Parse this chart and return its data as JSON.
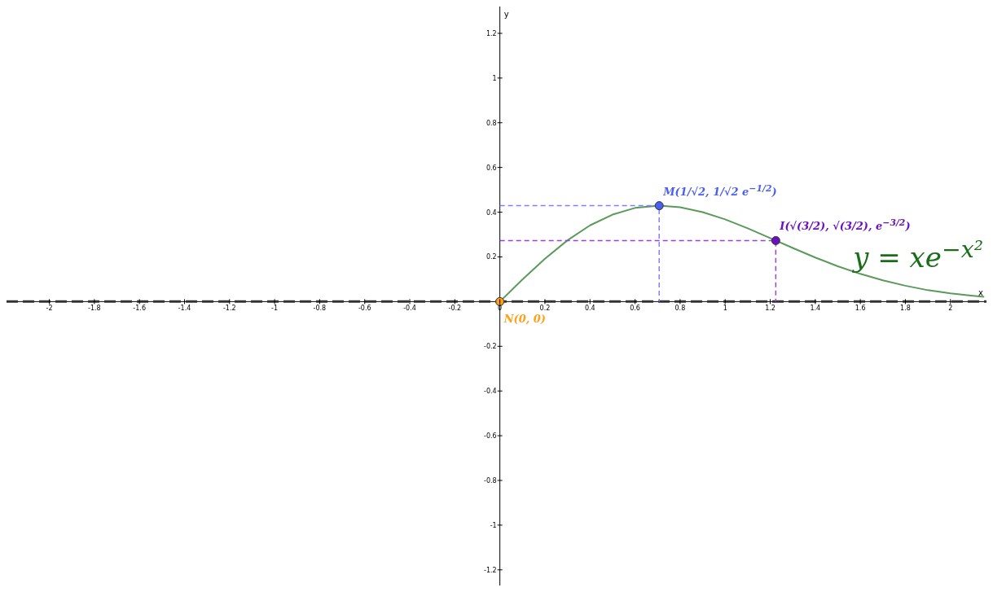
{
  "chart_data": {
    "type": "line",
    "xlabel": "x",
    "ylabel": "y",
    "xlim": [
      -2.19,
      2.16
    ],
    "ylim": [
      -1.27,
      1.32
    ],
    "xticks": [
      -2,
      -1.8,
      -1.6,
      -1.4,
      -1.2,
      -1,
      -0.8,
      -0.6,
      -0.4,
      -0.2,
      0,
      0.2,
      0.4,
      0.6,
      0.8,
      1,
      1.2,
      1.4,
      1.6,
      1.8,
      2
    ],
    "yticks": [
      -1.2,
      -1,
      -0.8,
      -0.6,
      -0.4,
      -0.2,
      0.2,
      0.4,
      0.6,
      0.8,
      1,
      1.2
    ],
    "ref_lines": [
      {
        "axis": "y",
        "value": 0,
        "line_style": "dashed",
        "color": "#333333"
      }
    ],
    "series": [
      {
        "color": "#5a9a5a",
        "marker": "none",
        "line_style": "solid",
        "x": [
          0,
          0.1,
          0.2,
          0.3,
          0.4,
          0.5,
          0.6,
          0.7071,
          0.8,
          0.9,
          1,
          1.1,
          1.2247,
          1.3,
          1.4,
          1.5,
          1.6,
          1.7,
          1.8,
          1.9,
          2,
          2.1,
          2.15
        ],
        "values": [
          0,
          0.099,
          0.192,
          0.274,
          0.341,
          0.389,
          0.419,
          0.429,
          0.422,
          0.4,
          0.368,
          0.328,
          0.273,
          0.24,
          0.197,
          0.158,
          0.124,
          0.095,
          0.071,
          0.051,
          0.037,
          0.026,
          0.021
        ]
      },
      {
        "type": "line",
        "color": "#8080ff",
        "marker": "none",
        "line_style": "dashed",
        "x": [
          0,
          0.7071,
          0.7071
        ],
        "values": [
          0.429,
          0.429,
          0
        ]
      },
      {
        "type": "line",
        "color": "#9b40d9",
        "marker": "none",
        "line_style": "dashed",
        "x": [
          0,
          1.2247,
          1.2247
        ],
        "values": [
          0.273,
          0.273,
          0
        ]
      },
      {
        "type": "scatter",
        "color": "#ff9f1a",
        "marker": "circle",
        "x": [
          0
        ],
        "values": [
          0
        ]
      },
      {
        "type": "scatter",
        "color": "#4a5ef0",
        "marker": "circle",
        "x": [
          0.7071
        ],
        "values": [
          0.429
        ]
      },
      {
        "type": "scatter",
        "color": "#6a10c0",
        "marker": "circle",
        "x": [
          1.2247
        ],
        "values": [
          0.273
        ]
      }
    ],
    "annotations": [
      {
        "text": "N(0, 0)",
        "x": 0,
        "y": 0
      },
      {
        "text": "M(1/√2, 1/√2 e$^{−1/2}$)",
        "x": 0.7071,
        "y": 0.429
      },
      {
        "text": "I(√(3/2), √(3/2), e$^{−3/2}$)",
        "x": 1.2247,
        "y": 0.273
      },
      "y = xe$^{−x²}$"
    ]
  }
}
